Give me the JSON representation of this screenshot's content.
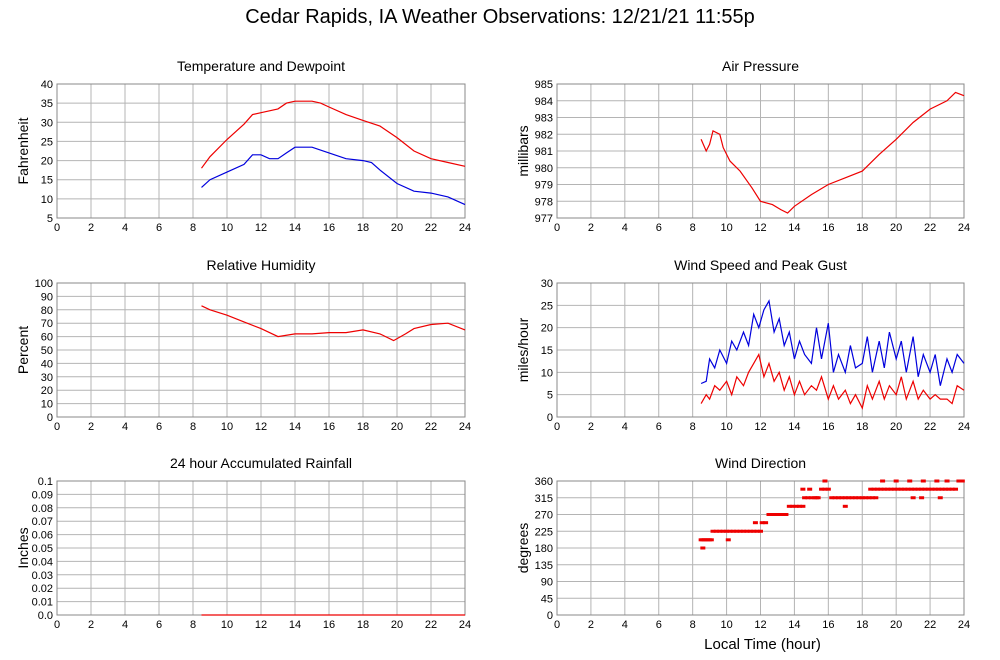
{
  "page_title": "Cedar Rapids, IA Weather Observations: 12/21/21 11:55p",
  "x_axis_title": "Local Time (hour)",
  "colors": {
    "red": "#ee0000",
    "blue": "#0000dd",
    "grid": "#b4b4b4",
    "frame": "#888888"
  },
  "chart_data": [
    {
      "id": "temp",
      "type": "line",
      "title": "Temperature and Dewpoint",
      "ylabel": "Fahrenheit",
      "ylim": [
        5,
        40
      ],
      "yticks": [
        5,
        10,
        15,
        20,
        25,
        30,
        35,
        40
      ],
      "ytick_labels": [
        "5",
        "10",
        "15",
        "20",
        "25",
        "30",
        "35",
        "40"
      ],
      "xlim": [
        0,
        24
      ],
      "xticks": [
        0,
        2,
        4,
        6,
        8,
        10,
        12,
        14,
        16,
        18,
        20,
        22,
        24
      ],
      "series": [
        {
          "color": "red",
          "x": [
            8.5,
            9,
            10,
            11,
            11.5,
            12,
            13,
            13.5,
            14,
            15,
            15.5,
            16,
            17,
            18,
            19,
            20,
            21,
            22,
            23,
            24
          ],
          "y": [
            18,
            21,
            25.5,
            29.5,
            32,
            32.5,
            33.5,
            35,
            35.5,
            35.5,
            35,
            34,
            32,
            30.5,
            29,
            26,
            22.5,
            20.5,
            19.5,
            18.5
          ]
        },
        {
          "color": "blue",
          "x": [
            8.5,
            9,
            10,
            11,
            11.5,
            12,
            12.5,
            13,
            13.5,
            14,
            14.5,
            15,
            16,
            17,
            18,
            18.5,
            19,
            20,
            21,
            22,
            23,
            24
          ],
          "y": [
            13,
            15,
            17,
            19,
            21.5,
            21.5,
            20.5,
            20.5,
            22,
            23.5,
            23.5,
            23.5,
            22,
            20.5,
            20,
            19.5,
            17.5,
            14,
            12,
            11.5,
            10.5,
            8.5
          ]
        }
      ]
    },
    {
      "id": "pressure",
      "type": "line",
      "title": "Air Pressure",
      "ylabel": "millibars",
      "ylim": [
        977,
        985
      ],
      "yticks": [
        977,
        978,
        979,
        980,
        981,
        982,
        983,
        984,
        985
      ],
      "ytick_labels": [
        "977",
        "978",
        "979",
        "980",
        "981",
        "982",
        "983",
        "984",
        "985"
      ],
      "xlim": [
        0,
        24
      ],
      "xticks": [
        0,
        2,
        4,
        6,
        8,
        10,
        12,
        14,
        16,
        18,
        20,
        22,
        24
      ],
      "series": [
        {
          "color": "red",
          "x": [
            8.5,
            8.8,
            9,
            9.2,
            9.6,
            9.8,
            10.2,
            10.8,
            11.5,
            12,
            12.7,
            13.2,
            13.6,
            14,
            15,
            16,
            17,
            18,
            19,
            20,
            21,
            22,
            23,
            23.5,
            24
          ],
          "y": [
            981.7,
            981,
            981.4,
            982.2,
            982,
            981.2,
            980.4,
            979.8,
            978.8,
            978,
            977.8,
            977.5,
            977.3,
            977.7,
            978.4,
            979,
            979.4,
            979.8,
            980.8,
            981.7,
            982.7,
            983.5,
            984,
            984.5,
            984.3
          ]
        }
      ]
    },
    {
      "id": "humidity",
      "type": "line",
      "title": "Relative Humidity",
      "ylabel": "Percent",
      "ylim": [
        0,
        100
      ],
      "yticks": [
        0,
        10,
        20,
        30,
        40,
        50,
        60,
        70,
        80,
        90,
        100
      ],
      "ytick_labels": [
        "0",
        "10",
        "20",
        "30",
        "40",
        "50",
        "60",
        "70",
        "80",
        "90",
        "100"
      ],
      "xlim": [
        0,
        24
      ],
      "xticks": [
        0,
        2,
        4,
        6,
        8,
        10,
        12,
        14,
        16,
        18,
        20,
        22,
        24
      ],
      "series": [
        {
          "color": "red",
          "x": [
            8.5,
            9,
            10,
            11,
            12,
            13,
            14,
            15,
            16,
            17,
            18,
            19,
            19.8,
            20.5,
            21,
            22,
            23,
            24
          ],
          "y": [
            83,
            80,
            76,
            71,
            66,
            60,
            62,
            62,
            63,
            63,
            65,
            62,
            57,
            62,
            66,
            69,
            70,
            65
          ]
        }
      ]
    },
    {
      "id": "wind",
      "type": "line",
      "title": "Wind Speed and Peak Gust",
      "ylabel": "miles/hour",
      "ylim": [
        0,
        30
      ],
      "yticks": [
        0,
        5,
        10,
        15,
        20,
        25,
        30
      ],
      "ytick_labels": [
        "0",
        "5",
        "10",
        "15",
        "20",
        "25",
        "30"
      ],
      "xlim": [
        0,
        24
      ],
      "xticks": [
        0,
        2,
        4,
        6,
        8,
        10,
        12,
        14,
        16,
        18,
        20,
        22,
        24
      ],
      "series": [
        {
          "color": "blue",
          "x": [
            8.5,
            8.8,
            9,
            9.3,
            9.6,
            10,
            10.3,
            10.6,
            11,
            11.3,
            11.6,
            11.9,
            12.2,
            12.5,
            12.8,
            13.1,
            13.4,
            13.7,
            14,
            14.3,
            14.6,
            15,
            15.3,
            15.6,
            16,
            16.3,
            16.6,
            17,
            17.3,
            17.6,
            18,
            18.3,
            18.6,
            19,
            19.3,
            19.6,
            20,
            20.3,
            20.6,
            21,
            21.3,
            21.6,
            22,
            22.3,
            22.6,
            23,
            23.3,
            23.6,
            24
          ],
          "y": [
            7.5,
            8,
            13,
            11,
            15,
            12,
            17,
            15,
            19,
            16,
            23,
            20,
            24,
            26,
            19,
            22,
            16,
            19,
            13,
            17,
            14,
            12,
            20,
            13,
            21,
            10,
            14,
            10,
            16,
            11,
            12,
            18,
            10,
            17,
            11,
            19,
            13,
            17,
            10,
            18,
            9,
            14,
            10,
            14,
            7,
            13,
            10,
            14,
            12
          ]
        },
        {
          "color": "red",
          "x": [
            8.5,
            8.8,
            9,
            9.3,
            9.6,
            10,
            10.3,
            10.6,
            11,
            11.3,
            11.6,
            11.9,
            12.2,
            12.5,
            12.8,
            13.1,
            13.4,
            13.7,
            14,
            14.3,
            14.6,
            15,
            15.3,
            15.6,
            16,
            16.3,
            16.6,
            17,
            17.3,
            17.6,
            18,
            18.3,
            18.6,
            19,
            19.3,
            19.6,
            20,
            20.3,
            20.6,
            21,
            21.3,
            21.6,
            22,
            22.3,
            22.6,
            23,
            23.3,
            23.6,
            24
          ],
          "y": [
            3,
            5,
            4,
            7,
            6,
            8,
            5,
            9,
            7,
            10,
            12,
            14,
            9,
            12,
            8,
            10,
            6,
            9,
            5,
            8,
            5,
            7,
            6,
            9,
            4,
            7,
            4,
            6,
            3,
            5,
            2,
            7,
            4,
            8,
            4,
            7,
            5,
            9,
            4,
            8,
            4,
            6,
            4,
            5,
            4,
            4,
            3,
            7,
            6
          ]
        }
      ]
    },
    {
      "id": "rain",
      "type": "line",
      "title": "24 hour Accumulated Rainfall",
      "ylabel": "Inches",
      "ylim": [
        0,
        0.1
      ],
      "yticks": [
        0,
        0.01,
        0.02,
        0.03,
        0.04,
        0.05,
        0.06,
        0.07,
        0.08,
        0.09,
        0.1
      ],
      "ytick_labels": [
        "0.0",
        "0.01",
        "0.02",
        "0.03",
        "0.04",
        "0.05",
        "0.06",
        "0.07",
        "0.08",
        "0.09",
        "0.1"
      ],
      "xlim": [
        0,
        24
      ],
      "xticks": [
        0,
        2,
        4,
        6,
        8,
        10,
        12,
        14,
        16,
        18,
        20,
        22,
        24
      ],
      "series": [
        {
          "color": "red",
          "x": [
            8.5,
            24
          ],
          "y": [
            0,
            0
          ]
        }
      ]
    },
    {
      "id": "direction",
      "type": "scatter",
      "title": "Wind Direction",
      "ylabel": "degrees",
      "ylim": [
        0,
        360
      ],
      "yticks": [
        0,
        45,
        90,
        135,
        180,
        225,
        270,
        315,
        360
      ],
      "ytick_labels": [
        "0",
        "45",
        "90",
        "135",
        "180",
        "225",
        "270",
        "315",
        "360"
      ],
      "xlim": [
        0,
        24
      ],
      "xticks": [
        0,
        2,
        4,
        6,
        8,
        10,
        12,
        14,
        16,
        18,
        20,
        22,
        24
      ],
      "series": [
        {
          "color": "red",
          "x": [
            8.5,
            8.6,
            8.7,
            8.8,
            8.9,
            9.0,
            9.1,
            8.6,
            9.2,
            9.4,
            9.6,
            9.8,
            10.0,
            10.2,
            10.4,
            10.6,
            10.8,
            11.0,
            11.2,
            10.1,
            11.4,
            11.6,
            11.8,
            12.0,
            11.7,
            12.1,
            12.3,
            12.5,
            12.7,
            12.9,
            13.1,
            13.3,
            13.5,
            13.7,
            13.9,
            14.1,
            14.3,
            14.5,
            14.6,
            14.8,
            15.0,
            14.5,
            14.9,
            15.2,
            15.4,
            15.6,
            15.8,
            16.0,
            15.8,
            15.3,
            16.2,
            16.4,
            16.6,
            16.8,
            17.0,
            17.2,
            17.4,
            17.6,
            17.8,
            18.0,
            18.2,
            18.4,
            18.6,
            18.8,
            17.0,
            18.5,
            18.7,
            18.9,
            19.1,
            19.3,
            19.5,
            19.7,
            19.9,
            20.1,
            20.3,
            20.5,
            20.7,
            20.9,
            21.1,
            21.3,
            21.5,
            21.7,
            21.9,
            22.1,
            22.3,
            22.5,
            22.7,
            22.9,
            23.1,
            23.3,
            23.5,
            23.7,
            23.9,
            19.2,
            20.0,
            20.8,
            21.6,
            22.4,
            23.0,
            21.5,
            21.0,
            22.6
          ],
          "y": [
            202,
            202,
            202,
            202,
            202,
            202,
            202,
            180,
            225,
            225,
            225,
            225,
            225,
            225,
            225,
            225,
            225,
            225,
            225,
            202,
            225,
            225,
            225,
            225,
            248,
            248,
            248,
            270,
            270,
            270,
            270,
            270,
            270,
            292,
            292,
            292,
            292,
            292,
            315,
            315,
            315,
            338,
            338,
            315,
            315,
            338,
            338,
            338,
            360,
            315,
            315,
            315,
            315,
            315,
            315,
            315,
            315,
            315,
            315,
            315,
            315,
            315,
            315,
            315,
            292,
            338,
            338,
            338,
            338,
            338,
            338,
            338,
            338,
            338,
            338,
            338,
            338,
            338,
            338,
            338,
            338,
            338,
            338,
            338,
            338,
            338,
            338,
            338,
            338,
            338,
            338,
            360,
            360,
            360,
            360,
            360,
            360,
            360,
            360,
            315,
            315,
            315
          ]
        }
      ]
    }
  ]
}
